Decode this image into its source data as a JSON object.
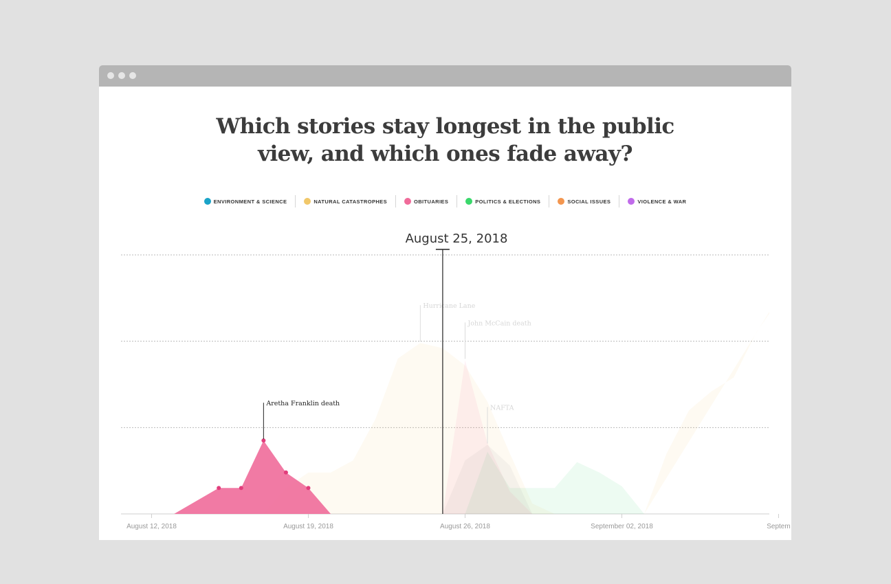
{
  "headline": {
    "line1": "Which stories stay longest in the public",
    "line2": "view, and which ones fade away?"
  },
  "legend": [
    {
      "label": "ENVIRONMENT & SCIENCE",
      "color": "#1aa3c8"
    },
    {
      "label": "NATURAL CATASTROPHES",
      "color": "#f1c86a"
    },
    {
      "label": "OBITUARIES",
      "color": "#f06b9a"
    },
    {
      "label": "POLITICS & ELECTIONS",
      "color": "#3ad86b"
    },
    {
      "label": "SOCIAL ISSUES",
      "color": "#f3964f"
    },
    {
      "label": "VIOLENCE & WAR",
      "color": "#c06bea"
    }
  ],
  "selected_date": "August 25, 2018",
  "chart_data": {
    "type": "area",
    "x_unit": "day",
    "xlim": [
      "2018-08-10",
      "2018-09-10"
    ],
    "ylim": [
      0,
      3
    ],
    "grid": true,
    "x_ticks": [
      {
        "date": "2018-08-12",
        "label": "August 12, 2018"
      },
      {
        "date": "2018-08-19",
        "label": "August 19, 2018"
      },
      {
        "date": "2018-08-26",
        "label": "August 26, 2018"
      },
      {
        "date": "2018-09-02",
        "label": "September 02, 2018"
      },
      {
        "date": "2018-09-09",
        "label": "Septem"
      }
    ],
    "cursor_date": "2018-08-25",
    "series": [
      {
        "name": "Hurricane Lane",
        "category": "NATURAL CATASTROPHES",
        "color": "#f1c86a",
        "highlight": false,
        "points": [
          [
            "2018-08-17",
            0
          ],
          [
            "2018-08-18",
            0.3
          ],
          [
            "2018-08-19",
            0.48
          ],
          [
            "2018-08-20",
            0.48
          ],
          [
            "2018-08-21",
            0.62
          ],
          [
            "2018-08-22",
            1.1
          ],
          [
            "2018-08-23",
            1.8
          ],
          [
            "2018-08-24",
            1.98
          ],
          [
            "2018-08-25",
            1.92
          ],
          [
            "2018-08-26",
            1.72
          ],
          [
            "2018-08-27",
            1.3
          ],
          [
            "2018-08-28",
            0.7
          ],
          [
            "2018-08-29",
            0.12
          ],
          [
            "2018-08-30",
            0
          ]
        ]
      },
      {
        "name": "",
        "category": "NATURAL CATASTROPHES",
        "color": "#f1c86a",
        "highlight": false,
        "points": [
          [
            "2018-09-03",
            0
          ],
          [
            "2018-09-04",
            0.7
          ],
          [
            "2018-09-05",
            1.2
          ],
          [
            "2018-09-06",
            1.42
          ],
          [
            "2018-09-07",
            1.58
          ],
          [
            "2018-09-08",
            2.1
          ],
          [
            "2018-09-09",
            2.32
          ],
          [
            "2018-09-10",
            2.34
          ]
        ]
      },
      {
        "name": "",
        "category": "POLITICS & ELECTIONS",
        "color": "#3ad86b",
        "highlight": false,
        "points": [
          [
            "2018-08-26",
            0
          ],
          [
            "2018-08-27",
            0.72
          ],
          [
            "2018-08-28",
            0.3
          ],
          [
            "2018-08-29",
            0.3
          ],
          [
            "2018-08-30",
            0.3
          ],
          [
            "2018-08-31",
            0.6
          ],
          [
            "2018-09-01",
            0.48
          ],
          [
            "2018-09-02",
            0.32
          ],
          [
            "2018-09-03",
            0
          ]
        ]
      },
      {
        "name": "NAFTA",
        "category": "POLITICS & ELECTIONS",
        "color": "#a0a0a0",
        "highlight": false,
        "points": [
          [
            "2018-08-25",
            0
          ],
          [
            "2018-08-26",
            0.62
          ],
          [
            "2018-08-27",
            0.8
          ],
          [
            "2018-08-28",
            0.56
          ],
          [
            "2018-08-29",
            0
          ]
        ]
      },
      {
        "name": "John McCain death",
        "category": "OBITUARIES",
        "color": "#f06b9a",
        "highlight": false,
        "points": [
          [
            "2018-08-25",
            0
          ],
          [
            "2018-08-26",
            1.78
          ],
          [
            "2018-08-27",
            0.82
          ],
          [
            "2018-08-28",
            0.26
          ],
          [
            "2018-08-29",
            0
          ]
        ]
      },
      {
        "name": "Aretha Franklin death",
        "category": "OBITUARIES",
        "color": "#f06b9a",
        "highlight": true,
        "points": [
          [
            "2018-08-13",
            0
          ],
          [
            "2018-08-15",
            0.3
          ],
          [
            "2018-08-16",
            0.3
          ],
          [
            "2018-08-17",
            0.85
          ],
          [
            "2018-08-18",
            0.48
          ],
          [
            "2018-08-19",
            0.3
          ],
          [
            "2018-08-20",
            0
          ]
        ]
      }
    ]
  }
}
